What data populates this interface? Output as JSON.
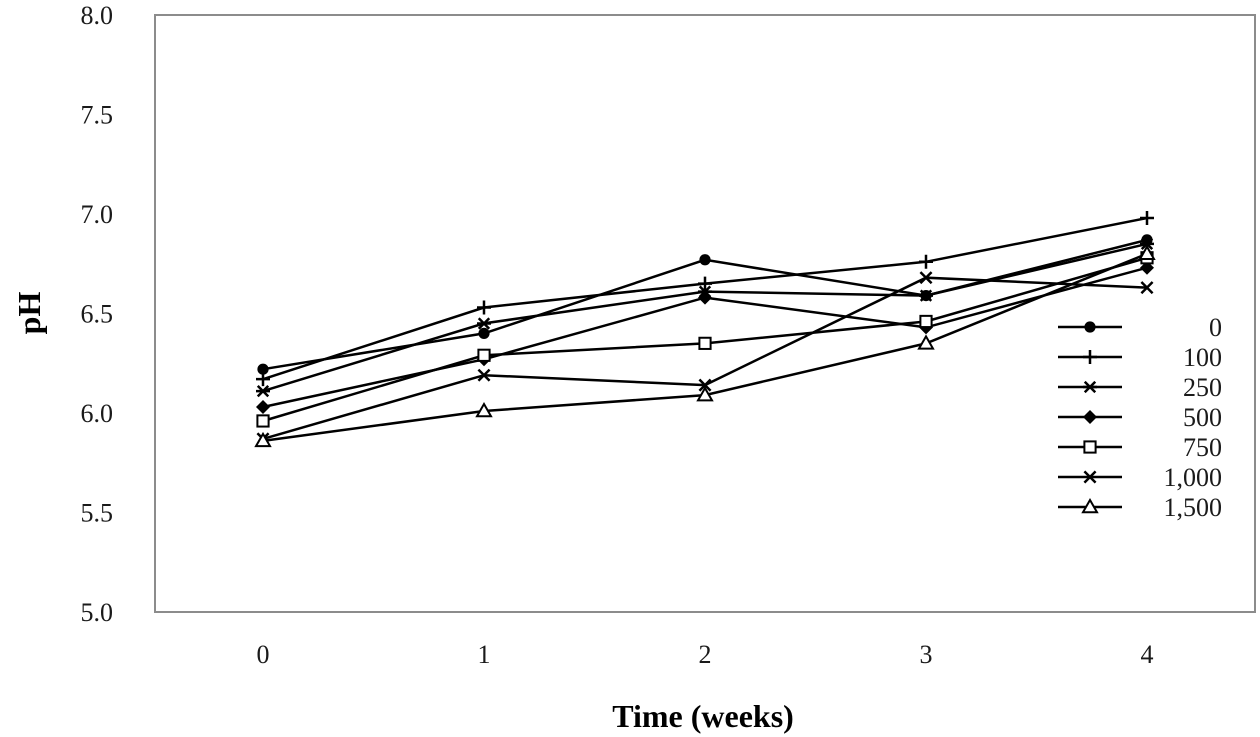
{
  "chart_data": {
    "type": "line",
    "title": "",
    "xlabel": "Time (weeks)",
    "ylabel": "pH",
    "x": [
      0,
      1,
      2,
      3,
      4
    ],
    "xticks": [
      "0",
      "1",
      "2",
      "3",
      "4"
    ],
    "yticks": [
      "5.0",
      "5.5",
      "6.0",
      "6.5",
      "7.0",
      "7.5",
      "8.0"
    ],
    "ylim": [
      5.0,
      8.0
    ],
    "grid": false,
    "legend_position": "right",
    "line_color": "#000000",
    "series": [
      {
        "name": "0",
        "marker": "filled-circle",
        "values": [
          6.22,
          6.4,
          6.77,
          6.59,
          6.87
        ]
      },
      {
        "name": "100",
        "marker": "plus",
        "values": [
          6.17,
          6.53,
          6.65,
          6.76,
          6.98
        ]
      },
      {
        "name": "250",
        "marker": "asterisk",
        "values": [
          6.11,
          6.45,
          6.61,
          6.59,
          6.85
        ]
      },
      {
        "name": "500",
        "marker": "filled-diamond",
        "values": [
          6.03,
          6.27,
          6.58,
          6.43,
          6.73
        ]
      },
      {
        "name": "750",
        "marker": "open-square",
        "values": [
          5.96,
          6.29,
          6.35,
          6.46,
          6.78
        ]
      },
      {
        "name": "1,000",
        "marker": "x-cross",
        "values": [
          5.87,
          6.19,
          6.14,
          6.68,
          6.63
        ]
      },
      {
        "name": "1,500",
        "marker": "open-triangle",
        "values": [
          5.86,
          6.01,
          6.09,
          6.35,
          6.8
        ]
      }
    ]
  }
}
